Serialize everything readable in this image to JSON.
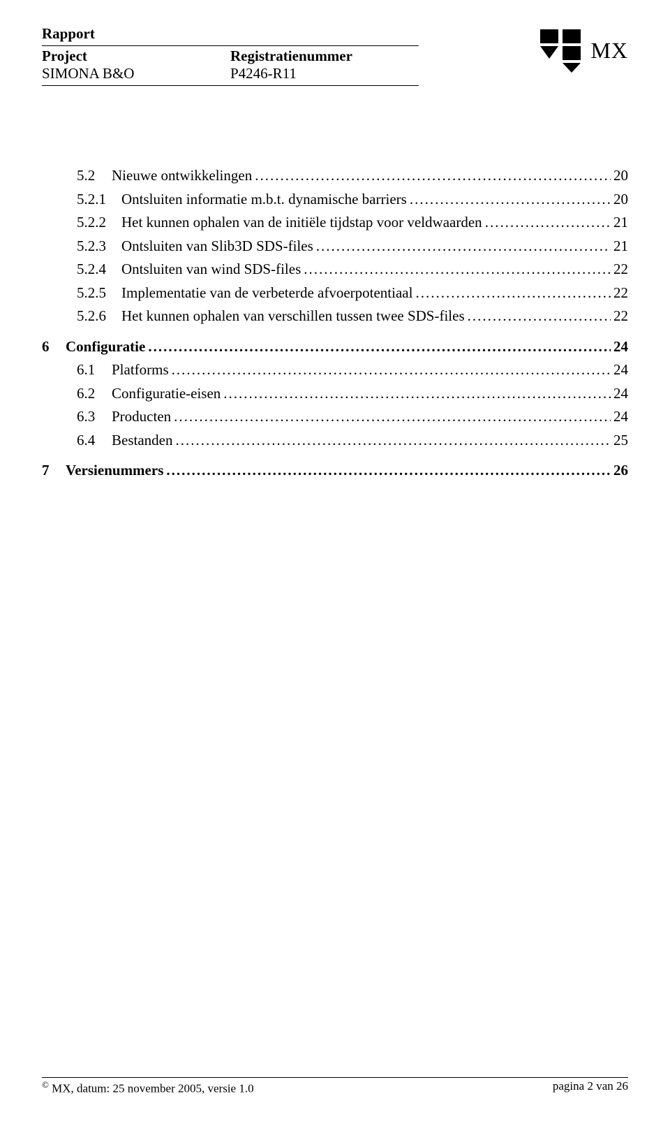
{
  "header": {
    "rapport_label": "Rapport",
    "project_label": "Project",
    "regnum_label": "Registratienummer",
    "project_value": "SIMONA B&O",
    "regnum_value": "P4246-R11",
    "brand": "MX"
  },
  "toc": [
    {
      "type": "sub",
      "num": "5.2",
      "label": "Nieuwe ontwikkelingen",
      "page": "20",
      "bold": false
    },
    {
      "type": "subsub",
      "num": "5.2.1",
      "label": "Ontsluiten informatie m.b.t. dynamische barriers",
      "page": "20",
      "bold": false
    },
    {
      "type": "subsub",
      "num": "5.2.2",
      "label": "Het kunnen ophalen van de initiële tijdstap voor veldwaarden",
      "page": "21",
      "bold": false
    },
    {
      "type": "subsub",
      "num": "5.2.3",
      "label": "Ontsluiten van Slib3D SDS-files",
      "page": "21",
      "bold": false
    },
    {
      "type": "subsub",
      "num": "5.2.4",
      "label": "Ontsluiten van wind SDS-files",
      "page": "22",
      "bold": false
    },
    {
      "type": "subsub",
      "num": "5.2.5",
      "label": "Implementatie van de verbeterde afvoerpotentiaal",
      "page": "22",
      "bold": false
    },
    {
      "type": "subsub",
      "num": "5.2.6",
      "label": "Het kunnen ophalen van verschillen tussen twee SDS-files",
      "page": "22",
      "bold": false
    },
    {
      "type": "gap"
    },
    {
      "type": "top",
      "num": "6",
      "label": "Configuratie",
      "page": "24",
      "bold": true
    },
    {
      "type": "sub",
      "num": "6.1",
      "label": "Platforms",
      "page": "24",
      "bold": false
    },
    {
      "type": "sub",
      "num": "6.2",
      "label": "Configuratie-eisen",
      "page": "24",
      "bold": false
    },
    {
      "type": "sub",
      "num": "6.3",
      "label": "Producten",
      "page": "24",
      "bold": false
    },
    {
      "type": "sub",
      "num": "6.4",
      "label": "Bestanden",
      "page": "25",
      "bold": false
    },
    {
      "type": "gap"
    },
    {
      "type": "top",
      "num": "7",
      "label": "Versienummers",
      "page": "26",
      "bold": true
    }
  ],
  "footer": {
    "left_prefix": "MX, datum: ",
    "date": "25 november 2005",
    "version_label": ", versie  ",
    "version": "1.0",
    "right": "pagina 2 van 26"
  },
  "colors": {
    "text": "#000000",
    "background": "#ffffff",
    "rule": "#000000",
    "logo": "#000000"
  },
  "typography": {
    "font_family": "Times New Roman",
    "body_fontsize_pt": 16,
    "header_fontsize_pt": 16,
    "brand_fontsize_pt": 24,
    "footer_fontsize_pt": 13
  }
}
